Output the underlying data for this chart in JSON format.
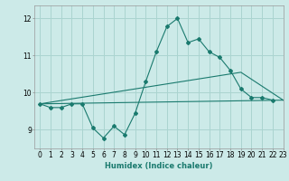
{
  "xlabel": "Humidex (Indice chaleur)",
  "bg_color": "#cceae8",
  "grid_color": "#aad4d0",
  "line_color": "#1a7a6e",
  "ylim": [
    8.5,
    12.35
  ],
  "xlim": [
    -0.5,
    23
  ],
  "yticks": [
    9,
    10,
    11,
    12
  ],
  "xticks": [
    0,
    1,
    2,
    3,
    4,
    5,
    6,
    7,
    8,
    9,
    10,
    11,
    12,
    13,
    14,
    15,
    16,
    17,
    18,
    19,
    20,
    21,
    22,
    23
  ],
  "series1_y": [
    9.7,
    9.6,
    9.6,
    9.7,
    9.7,
    9.05,
    8.78,
    9.1,
    8.87,
    9.45,
    10.3,
    11.1,
    11.78,
    12.0,
    11.35,
    11.45,
    11.1,
    10.95,
    10.6,
    10.1,
    9.87,
    9.87,
    9.8
  ],
  "series2_x": [
    0,
    23
  ],
  "series2_y": [
    9.7,
    9.8
  ],
  "series3_x": [
    0,
    19,
    23
  ],
  "series3_y": [
    9.7,
    10.55,
    9.8
  ],
  "xlabel_fontsize": 6,
  "tick_fontsize": 5.5
}
